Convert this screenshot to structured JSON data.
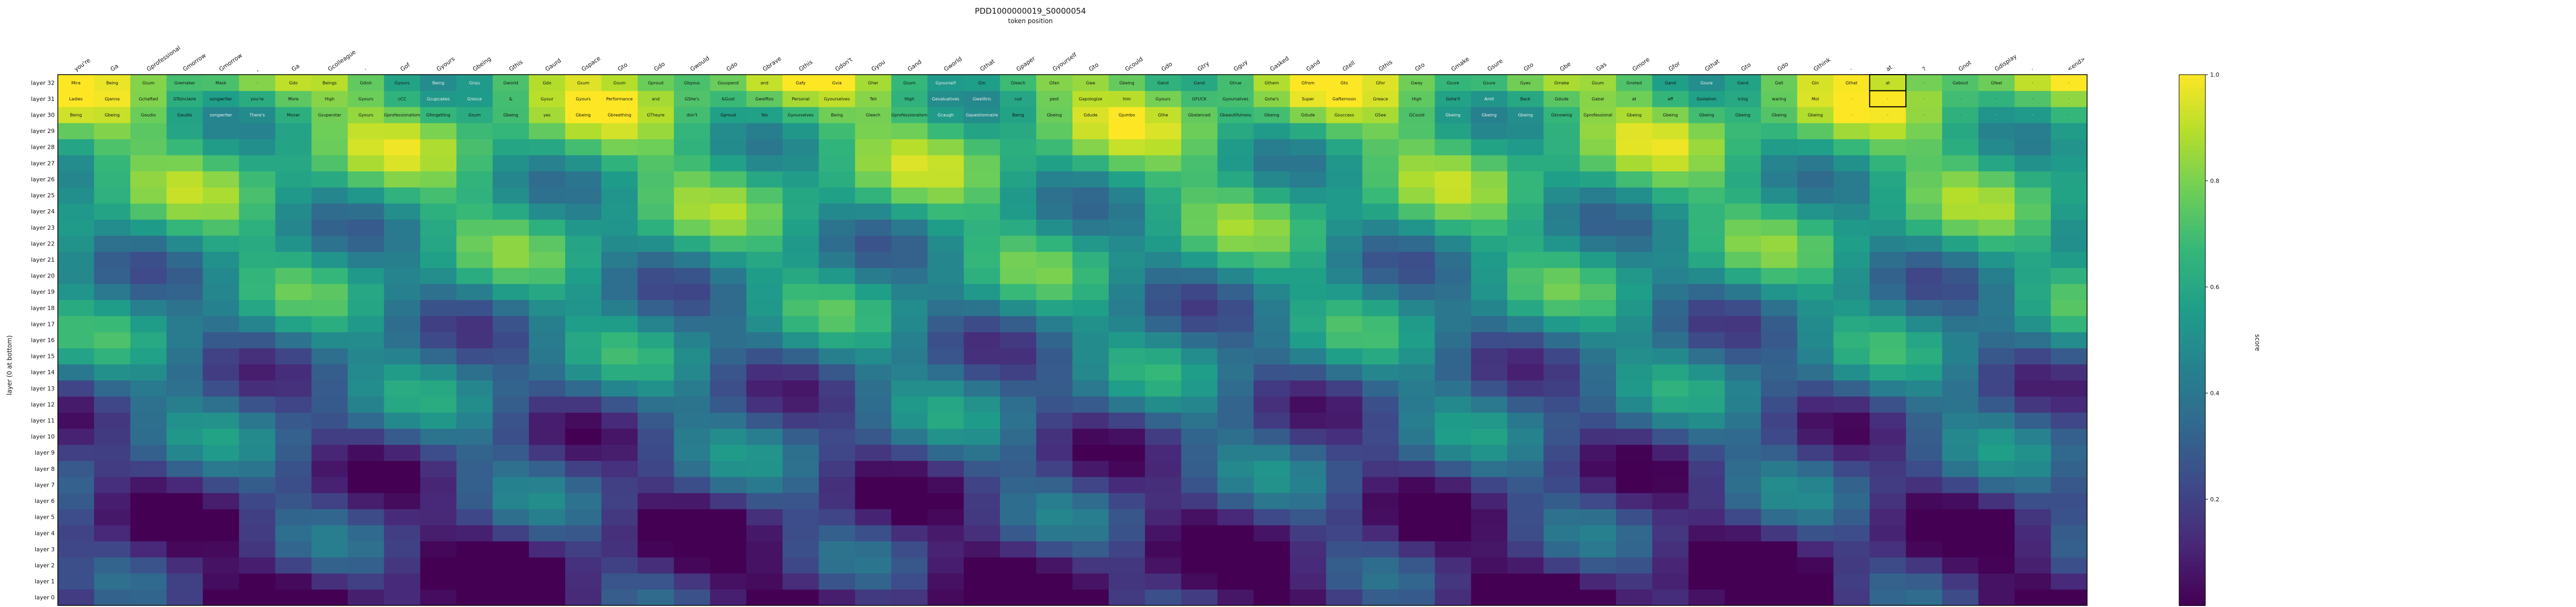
{
  "chart_data": {
    "type": "heatmap",
    "title": "PDD1000000019_S0000054",
    "xlabel": "token position",
    "ylabel": "layer (0 at bottom)",
    "colorbar_label": "score",
    "colorbar_ticks": [
      "0.2",
      "0.4",
      "0.6",
      "0.8",
      "1.0"
    ],
    "vrange": [
      0.0,
      1.0
    ],
    "colormap": "viridis",
    "x_tokens": [
      "you're",
      "Ga",
      "Gprofessional",
      "Gmorrow",
      "Gmorrow",
      ",",
      "Ga",
      "Gcolleague",
      "·",
      "Gof",
      "Gyours",
      "Gbeing",
      "Gthis",
      "Gaurd",
      "Gspace",
      "Gto",
      "Gdo",
      "Gwould",
      "Gdo",
      "Gbrave",
      "Gthis",
      "Gdon't",
      "Gyou",
      "Gand",
      "Gworld",
      "Gthat",
      "Gpaper",
      "Gyourself",
      "Gto",
      "Gcould",
      "Gdo",
      "Gtry",
      "Gguy",
      "Gasked",
      "Gand",
      "Gtell",
      "Gthis",
      "Gto",
      "Gmake",
      "Gsure",
      "Gto",
      "Gbe",
      "Gas",
      "Gmore",
      "Gfor",
      "Gthat",
      "Gto",
      "Gdo",
      "Gthink",
      "·",
      "at",
      "?",
      "Gnot",
      "Gdisplay",
      "·",
      "<end>"
    ],
    "rows": [
      {
        "layer": "layer 32",
        "cells": [
          "Mira",
          "Being",
          "Gsum",
          "Gremaker",
          "Mask",
          "·",
          "Gdo",
          "Beings",
          "Gdish",
          "Gyours",
          "Being",
          "Ginju",
          "Gworld",
          "Gdo",
          "Gsum",
          "Gsum",
          "Gproud",
          "Gbyous",
          "Gsuspend",
          "and",
          "Gafy",
          "Gvia",
          "Gher",
          "Gsum",
          "Gyourself",
          "Gin",
          "Gleech",
          "Gfan",
          "Gwe",
          "Gbeing",
          "Gand",
          "Gand",
          "Gtrue",
          "Gthem",
          "Gfrom",
          "Gto",
          "Gfor",
          "Gway",
          "Gsure",
          "Gsure",
          "Gyes",
          "Gmake",
          "Gsum",
          "Gnoted",
          "Gand",
          "Gsure",
          "Gand",
          "Gall",
          "Gin",
          "Gthat",
          "at",
          "·",
          "Gabout",
          "Gfeel",
          "·",
          "·"
        ]
      },
      {
        "layer": "layer 31",
        "cells": [
          "Ladies",
          "Gjanna",
          "Gchafted",
          "GTsinclaire",
          "songwriter",
          "you're",
          "More",
          "High",
          "Gyours",
          "cCC",
          "Gcupcakes",
          "Gresce",
          "&",
          "Gyour",
          "Gyours",
          "Performance",
          "and",
          "GShe's",
          "&Gust",
          "Gwelftos",
          "Personal",
          "Gyourselves",
          "Tell",
          "High",
          "Gevaluatives",
          "Gwelltris",
          "rud",
          "pest",
          "Gapologize",
          "him",
          "Gyours",
          "GFUCK",
          "Gyourselves",
          "Gshe's",
          "Super",
          "Gafternoon",
          "Greace",
          "High",
          "Gshe'll",
          "Amit",
          "Back",
          "Gdude",
          "Gabal",
          "at",
          "aff",
          "Gsolation",
          "icing",
          "waring",
          "Mol",
          "·",
          "·",
          "·",
          "·",
          "·",
          "·",
          "·"
        ]
      },
      {
        "layer": "layer 30",
        "cells": [
          "Being",
          "Gbeing",
          "Gaudio",
          "Gaudio",
          "songwriter",
          "There's",
          "Mover",
          "Gsuperstar",
          "Gyours",
          "Gprofessionalism",
          "Gforgetting",
          "Gsum",
          "Gbeing",
          "yes",
          "Gbeing",
          "Gbreathing",
          "GTheyre",
          "don't",
          "Gproud",
          "Yes",
          "Gyourselves",
          "Being",
          "Gleech",
          "Gprofessionalism",
          "Gcaugh",
          "Gquestionnaire",
          "Being",
          "Gbeing",
          "Gdude",
          "Gjumbo",
          "Gthe",
          "Gbalanced",
          "Gbeautifulness",
          "Gbeing",
          "Gdude",
          "Gsuccess",
          "GSee",
          "GCould",
          "Gbeing",
          "Gbeing",
          "Gbeing",
          "Gknowing",
          "Gprofessional",
          "Gbeing",
          "Gbeing",
          "Gbeing",
          "Gbeing",
          "Gbeing",
          "Gbeing",
          "·",
          "·",
          "·",
          "·",
          "·",
          "·",
          "·"
        ]
      }
    ],
    "highlighted_cells": [
      {
        "layer": "layer 32",
        "token_index": 50
      },
      {
        "layer": "layer 31",
        "token_index": 50
      }
    ]
  }
}
